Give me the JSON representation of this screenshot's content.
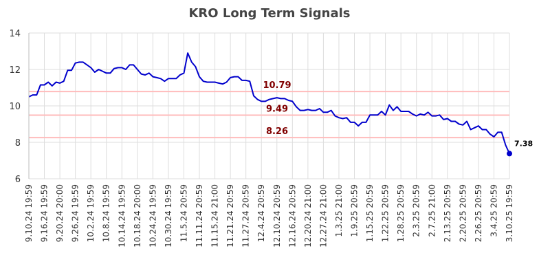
{
  "chart_data": {
    "type": "line",
    "title": "KRO Long Term Signals",
    "xlabel": "",
    "ylabel": "",
    "ylim": [
      6,
      14
    ],
    "yticks": [
      6,
      8,
      10,
      12,
      14
    ],
    "grid": true,
    "x_tick_labels": [
      "9.10.24 19:59",
      "9.16.24 19:59",
      "9.20.24 20:00",
      "9.26.24 19:59",
      "10.2.24 19:59",
      "10.8.24 19:59",
      "10.14.24 19:59",
      "10.18.24 20:00",
      "10.24.24 19:59",
      "10.30.24 19:59",
      "11.5.24 20:59",
      "11.11.24 20:59",
      "11.15.24 21:00",
      "11.21.24 20:59",
      "11.27.24 20:59",
      "12.4.24 20:59",
      "12.10.24 20:59",
      "12.16.24 20:59",
      "12.20.24 21:00",
      "12.27.24 21:00",
      "1.3.25 21:00",
      "1.9.25 20:59",
      "1.15.25 20:59",
      "1.22.25 20:59",
      "1.28.25 20:59",
      "2.3.25 20:59",
      "2.7.25 21:00",
      "2.13.25 20:59",
      "2.20.25 20:59",
      "2.26.25 20:59",
      "3.4.25 20:59",
      "3.10.25 19:59"
    ],
    "series": [
      {
        "color": "#0000cc",
        "values": [
          10.5,
          10.6,
          10.6,
          11.15,
          11.15,
          11.3,
          11.1,
          11.3,
          11.25,
          11.35,
          11.95,
          11.95,
          12.35,
          12.4,
          12.4,
          12.25,
          12.1,
          11.85,
          12.0,
          11.9,
          11.8,
          11.8,
          12.05,
          12.1,
          12.1,
          12.0,
          12.25,
          12.25,
          12.0,
          11.75,
          11.7,
          11.8,
          11.6,
          11.55,
          11.5,
          11.35,
          11.5,
          11.5,
          11.5,
          11.7,
          11.8,
          12.9,
          12.4,
          12.15,
          11.6,
          11.35,
          11.3,
          11.3,
          11.3,
          11.25,
          11.2,
          11.3,
          11.55,
          11.6,
          11.6,
          11.4,
          11.4,
          11.35,
          10.55,
          10.35,
          10.25,
          10.25,
          10.35,
          10.4,
          10.45,
          10.4,
          10.4,
          10.3,
          10.25,
          9.95,
          9.75,
          9.75,
          9.8,
          9.75,
          9.75,
          9.85,
          9.65,
          9.65,
          9.75,
          9.45,
          9.35,
          9.3,
          9.35,
          9.1,
          9.1,
          8.9,
          9.1,
          9.1,
          9.5,
          9.5,
          9.5,
          9.7,
          9.5,
          10.05,
          9.75,
          9.95,
          9.7,
          9.7,
          9.7,
          9.55,
          9.45,
          9.55,
          9.5,
          9.65,
          9.45,
          9.45,
          9.5,
          9.25,
          9.3,
          9.15,
          9.15,
          9.0,
          8.95,
          9.15,
          8.7,
          8.8,
          8.9,
          8.7,
          8.7,
          8.45,
          8.3,
          8.55,
          8.55,
          7.85,
          7.38
        ]
      }
    ],
    "reference_lines": [
      {
        "value": 10.79,
        "label": "10.79"
      },
      {
        "value": 9.49,
        "label": "9.49"
      },
      {
        "value": 8.26,
        "label": "8.26"
      }
    ],
    "last_value": {
      "value": 7.38,
      "label": "7.38"
    },
    "colors": {
      "line": "#0000cc",
      "reference_line": "#ffbbbb",
      "reference_label": "#800000",
      "grid": "#dddddd",
      "title": "#444444"
    }
  }
}
